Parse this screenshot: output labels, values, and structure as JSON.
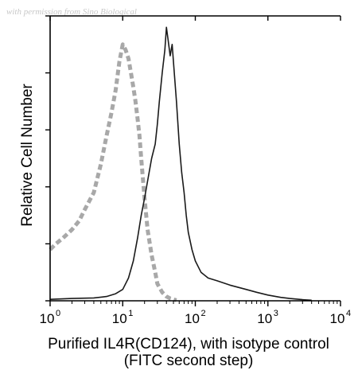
{
  "watermark": "with permission from Sino Biological",
  "chart_data": {
    "type": "area",
    "xlabel": [
      "Purified IL4R(CD124), with isotype control",
      "(FITC second step)"
    ],
    "ylabel": "Relative Cell Number",
    "xscale": "log",
    "xlim": [
      1,
      10000
    ],
    "ylim": [
      0,
      100
    ],
    "x_ticks": [
      {
        "base": "10",
        "exp": "0",
        "value": 1
      },
      {
        "base": "10",
        "exp": "1",
        "value": 10
      },
      {
        "base": "10",
        "exp": "2",
        "value": 100
      },
      {
        "base": "10",
        "exp": "3",
        "value": 1000
      },
      {
        "base": "10",
        "exp": "4",
        "value": 10000
      }
    ],
    "grid": false,
    "series": [
      {
        "role": "isotype-control",
        "style": "dashed",
        "color": "#a8a8a8",
        "x": [
          1.0,
          1.2,
          1.5,
          2.0,
          2.5,
          3.0,
          4.0,
          5.0,
          6.0,
          7.0,
          8.0,
          9.0,
          10.0,
          11.0,
          12.0,
          13.0,
          14.0,
          15.0,
          16.0,
          17.0,
          18.0,
          20.0,
          22.0,
          25.0,
          28.0,
          30.0,
          35.0,
          40.0,
          45.0,
          55.0
        ],
        "y": [
          18,
          20,
          22,
          25,
          28,
          32,
          38,
          48,
          58,
          66,
          74,
          84,
          90,
          88,
          85,
          80,
          75,
          70,
          64,
          58,
          50,
          36,
          25,
          16,
          10,
          6,
          3,
          1.5,
          0.8,
          0.2
        ]
      },
      {
        "role": "IL4R",
        "style": "solid",
        "color": "#1a1a1a",
        "x": [
          1,
          2,
          4,
          6,
          8,
          10,
          12,
          14,
          16,
          18,
          20,
          22,
          25,
          28,
          30,
          32,
          35,
          38,
          40,
          42,
          45,
          48,
          50,
          55,
          60,
          65,
          70,
          75,
          80,
          90,
          100,
          120,
          150,
          200,
          300,
          500,
          700,
          1000,
          1500,
          2000,
          3000,
          4000
        ],
        "y": [
          0.5,
          0.8,
          1,
          1.5,
          2.5,
          4,
          8,
          14,
          22,
          30,
          36,
          42,
          50,
          55,
          62,
          70,
          80,
          88,
          96,
          92,
          86,
          90,
          84,
          70,
          55,
          45,
          38,
          30,
          24,
          18,
          14,
          10,
          8,
          7,
          5.5,
          4,
          3,
          2,
          1.2,
          0.8,
          0.4,
          0.2
        ]
      }
    ]
  }
}
